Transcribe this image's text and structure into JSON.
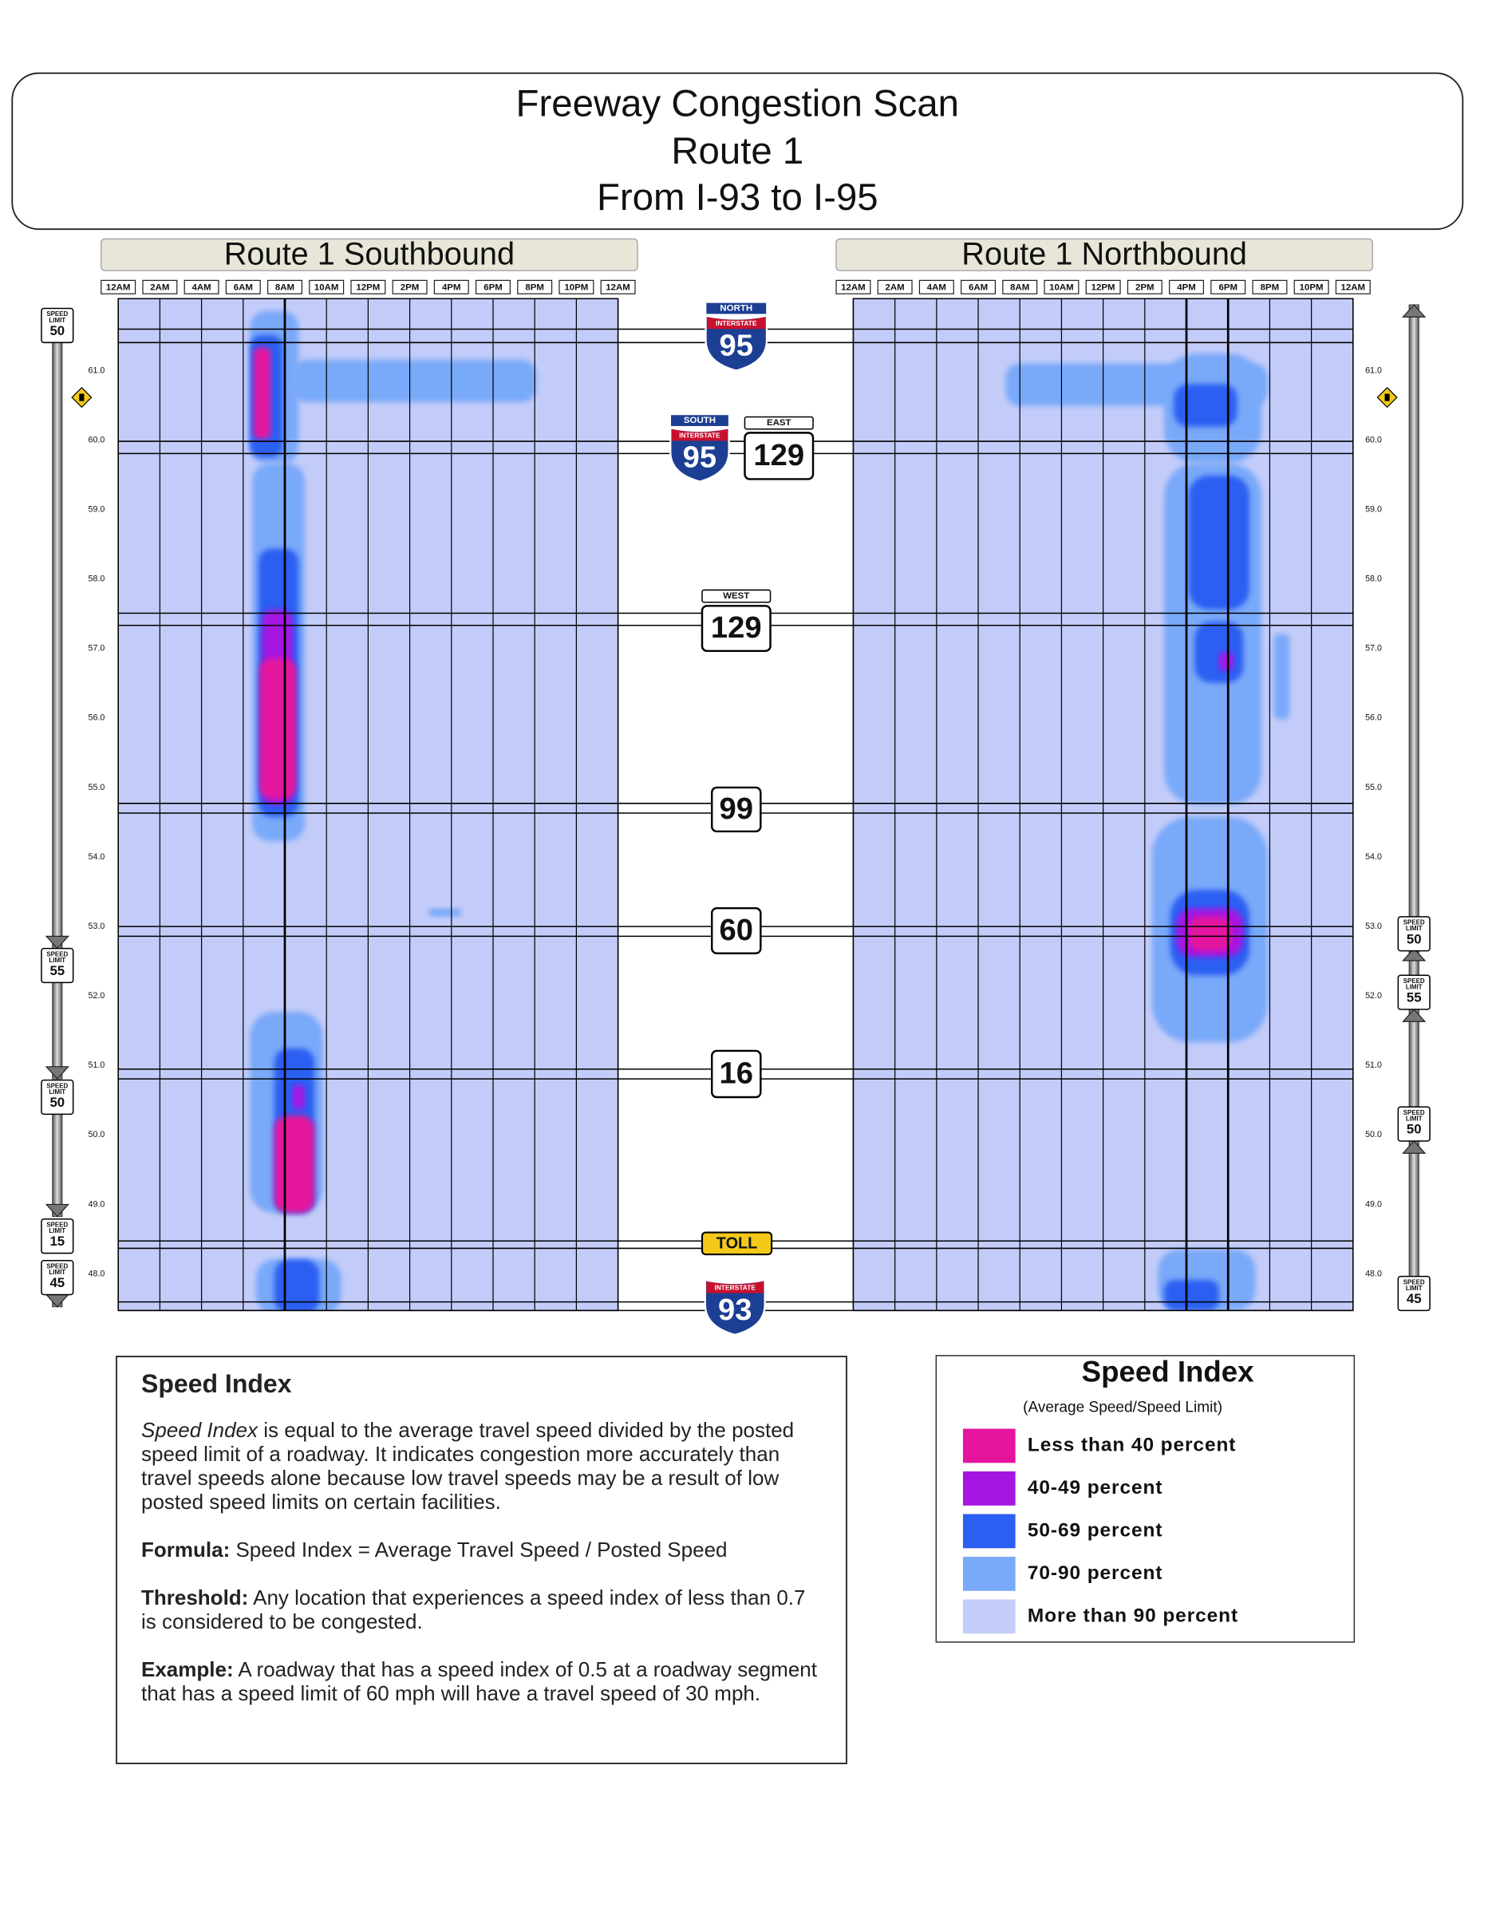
{
  "header": {
    "title_lines": [
      "Freeway Congestion Scan",
      "Route 1",
      "From I-93 to I-95"
    ]
  },
  "panels": [
    {
      "title": "Route 1 Southbound"
    },
    {
      "title": "Route 1 Northbound"
    }
  ],
  "time_axis": [
    "12AM",
    "2AM",
    "4AM",
    "6AM",
    "8AM",
    "10AM",
    "12PM",
    "2PM",
    "4PM",
    "6PM",
    "8PM",
    "10PM",
    "12AM"
  ],
  "mileposts": [
    "61.0",
    "60.0",
    "59.0",
    "58.0",
    "57.0",
    "56.0",
    "55.0",
    "54.0",
    "53.0",
    "52.0",
    "51.0",
    "50.0",
    "49.0",
    "48.0"
  ],
  "shields": [
    {
      "direction": "NORTH",
      "type_label": "INTERSTATE",
      "number": "95"
    },
    {
      "direction": "SOUTH",
      "type_label": "INTERSTATE",
      "number": "95"
    },
    {
      "direction": "EAST",
      "number": "129"
    },
    {
      "direction": "WEST",
      "number": "129"
    },
    {
      "number": "99"
    },
    {
      "number": "60"
    },
    {
      "number": "16"
    },
    {
      "number": "TOLL"
    },
    {
      "type_label": "INTERSTATE",
      "number": "93"
    }
  ],
  "speed_limits": {
    "sign_words": [
      "SPEED",
      "LIMIT"
    ],
    "southbound": [
      "50",
      "55",
      "50",
      "15",
      "45"
    ],
    "northbound": [
      "50",
      "55",
      "50",
      "45"
    ]
  },
  "info": {
    "heading": "Speed Index",
    "definition": {
      "term": "Speed Index",
      "text": " is equal to the average travel speed divided by the posted speed limit of a roadway. It indicates congestion more accurately than travel speeds alone because low travel speeds may be a result of low posted speed limits on certain facilities."
    },
    "formula": {
      "label": "Formula:",
      "text": " Speed Index = Average Travel Speed / Posted Speed"
    },
    "threshold": {
      "label": "Threshold:",
      "text": " Any location that experiences a speed index of less than 0.7 is considered to be congested."
    },
    "example": {
      "label": "Example:",
      "text": " A roadway that has a speed index of 0.5 at a roadway segment that has a speed limit of 60 mph will have a travel speed of 30 mph."
    }
  },
  "legend": {
    "title": "Speed Index",
    "subtitle": "(Average Speed/Speed Limit)",
    "items": [
      {
        "label": "Less than 40 percent",
        "color": "#e4149f"
      },
      {
        "label": "40-49 percent",
        "color": "#a415e2"
      },
      {
        "label": "50-69 percent",
        "color": "#2b5ff2"
      },
      {
        "label": "70-90 percent",
        "color": "#79a9f9"
      },
      {
        "label": "More than 90 percent",
        "color": "#c4cdfa"
      }
    ]
  }
}
